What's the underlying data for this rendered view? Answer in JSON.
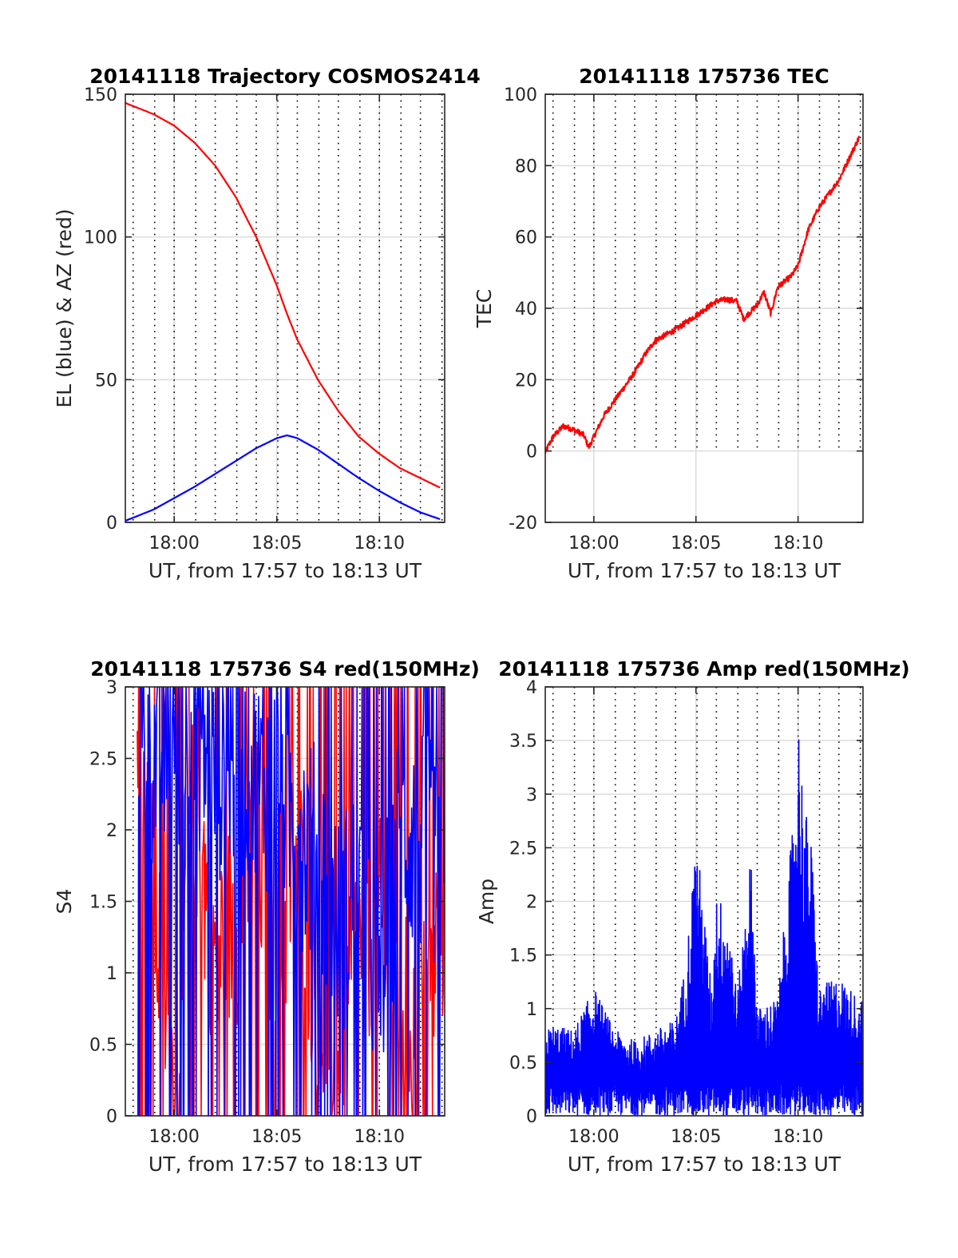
{
  "figure": {
    "charts": [
      {
        "id": "trajectory",
        "type": "line",
        "title": "20141118 Trajectory COSMOS2414",
        "xlabel": "UT, from 17:57 to 18:13 UT",
        "ylabel": "EL (blue) & AZ (red)",
        "xlim": [
          17.62,
          33.18
        ],
        "ylim": [
          0,
          150
        ],
        "xticks": [
          {
            "v": 20,
            "label": "18:00"
          },
          {
            "v": 25,
            "label": "18:05"
          },
          {
            "v": 30,
            "label": "18:10"
          }
        ],
        "yticks": [
          {
            "v": 0,
            "label": "0"
          },
          {
            "v": 50,
            "label": "50"
          },
          {
            "v": 100,
            "label": "100"
          },
          {
            "v": 150,
            "label": "150"
          }
        ]
      },
      {
        "id": "tec",
        "type": "line",
        "title": "20141118 175736 TEC",
        "xlabel": "UT, from 17:57 to 18:13 UT",
        "ylabel": "TEC",
        "xlim": [
          17.62,
          33.18
        ],
        "ylim": [
          -20,
          100
        ],
        "xticks": [
          {
            "v": 20,
            "label": "18:00"
          },
          {
            "v": 25,
            "label": "18:05"
          },
          {
            "v": 30,
            "label": "18:10"
          }
        ],
        "yticks": [
          {
            "v": -20,
            "label": "-20"
          },
          {
            "v": 0,
            "label": "0"
          },
          {
            "v": 20,
            "label": "20"
          },
          {
            "v": 40,
            "label": "40"
          },
          {
            "v": 60,
            "label": "60"
          },
          {
            "v": 80,
            "label": "80"
          },
          {
            "v": 100,
            "label": "100"
          }
        ]
      },
      {
        "id": "s4",
        "type": "line",
        "title": "20141118 175736 S4 red(150MHz)",
        "xlabel": "UT, from 17:57 to 18:13 UT",
        "ylabel": "S4",
        "xlim": [
          17.62,
          33.18
        ],
        "ylim": [
          0,
          3
        ],
        "xticks": [
          {
            "v": 20,
            "label": "18:00"
          },
          {
            "v": 25,
            "label": "18:05"
          },
          {
            "v": 30,
            "label": "18:10"
          }
        ],
        "yticks": [
          {
            "v": 0,
            "label": "0"
          },
          {
            "v": 0.5,
            "label": "0.5"
          },
          {
            "v": 1,
            "label": "1"
          },
          {
            "v": 1.5,
            "label": "1.5"
          },
          {
            "v": 2,
            "label": "2"
          },
          {
            "v": 2.5,
            "label": "2.5"
          },
          {
            "v": 3,
            "label": "3"
          }
        ]
      },
      {
        "id": "amp",
        "type": "line",
        "title": "20141118 175736 Amp red(150MHz)",
        "xlabel": "UT, from 17:57 to 18:13 UT",
        "ylabel": "Amp",
        "xlim": [
          17.62,
          33.18
        ],
        "ylim": [
          0,
          4
        ],
        "xticks": [
          {
            "v": 20,
            "label": "18:00"
          },
          {
            "v": 25,
            "label": "18:05"
          },
          {
            "v": 30,
            "label": "18:10"
          }
        ],
        "yticks": [
          {
            "v": 0,
            "label": "0"
          },
          {
            "v": 0.5,
            "label": "0.5"
          },
          {
            "v": 1,
            "label": "1"
          },
          {
            "v": 1.5,
            "label": "1.5"
          },
          {
            "v": 2,
            "label": "2"
          },
          {
            "v": 2.5,
            "label": "2.5"
          },
          {
            "v": 3,
            "label": "3"
          },
          {
            "v": 3.5,
            "label": "3.5"
          },
          {
            "v": 4,
            "label": "4"
          }
        ]
      }
    ]
  },
  "chart_data": [
    {
      "type": "line",
      "title": "20141118 Trajectory COSMOS2414",
      "xlabel": "UT, from 17:57 to 18:13 UT",
      "ylabel": "EL (blue) & AZ (red)",
      "ylim": [
        0,
        150
      ],
      "grid": true,
      "series": [
        {
          "color": "#ff0000",
          "x": [
            "17:57:36",
            "17:59:00",
            "18:00:00",
            "18:01:00",
            "18:02:00",
            "18:03:00",
            "18:04:00",
            "18:05:00",
            "18:05:30",
            "18:06:00",
            "18:07:00",
            "18:08:00",
            "18:09:00",
            "18:10:00",
            "18:11:00",
            "18:12:00",
            "18:13:00"
          ],
          "values": [
            147,
            143,
            139,
            133,
            125,
            114,
            100,
            83,
            73,
            64,
            50,
            39,
            30,
            24,
            19,
            15.5,
            12
          ]
        },
        {
          "color": "#0000ff",
          "x": [
            "17:57:36",
            "17:59:00",
            "18:00:00",
            "18:01:00",
            "18:02:00",
            "18:03:00",
            "18:04:00",
            "18:05:00",
            "18:05:30",
            "18:06:00",
            "18:07:00",
            "18:08:00",
            "18:09:00",
            "18:10:00",
            "18:11:00",
            "18:12:00",
            "18:13:00"
          ],
          "values": [
            0.5,
            4.5,
            8.5,
            12.5,
            17,
            21.5,
            26,
            29.5,
            30.5,
            29.5,
            25.5,
            20.5,
            15.5,
            11,
            7,
            3.5,
            1
          ]
        }
      ]
    },
    {
      "type": "line",
      "title": "20141118 175736 TEC",
      "xlabel": "UT, from 17:57 to 18:13 UT",
      "ylabel": "TEC",
      "ylim": [
        -20,
        100
      ],
      "grid": true,
      "series": [
        {
          "color": "#ff0000",
          "x": [
            "17:57:36",
            "17:58:00",
            "17:58:30",
            "17:59:00",
            "17:59:30",
            "17:59:45",
            "18:00:30",
            "18:01:00",
            "18:02:00",
            "18:02:30",
            "18:03:00",
            "18:04:00",
            "18:05:00",
            "18:06:00",
            "18:06:30",
            "18:07:00",
            "18:07:20",
            "18:08:00",
            "18:08:20",
            "18:08:40",
            "18:09:00",
            "18:09:40",
            "18:10:00",
            "18:10:30",
            "18:11:00",
            "18:12:00",
            "18:13:00"
          ],
          "values": [
            -0.5,
            4,
            7,
            6,
            4.5,
            1,
            10,
            14,
            22,
            27,
            31,
            34,
            38,
            42,
            42.5,
            42,
            37,
            41,
            44.5,
            38.5,
            46,
            49,
            52,
            62,
            68,
            76,
            88
          ]
        }
      ]
    },
    {
      "type": "line",
      "title": "20141118 175736 S4 red(150MHz)",
      "xlabel": "UT, from 17:57 to 18:13 UT",
      "ylabel": "S4",
      "ylim": [
        0,
        3
      ],
      "grid": true,
      "series": [
        {
          "color": "#ff0000",
          "x": [
            "17:58",
            "17:59",
            "18:00",
            "18:01",
            "18:02",
            "18:03",
            "18:04",
            "18:05",
            "18:06",
            "18:07",
            "18:08",
            "18:09",
            "18:10",
            "18:11",
            "18:12",
            "18:13"
          ],
          "values": [
            2.5,
            1.5,
            0.2,
            2.2,
            1.1,
            1.4,
            1.9,
            1.2,
            1.8,
            0.8,
            0.6,
            1.2,
            1.3,
            0.9,
            0.5,
            1.4
          ]
        },
        {
          "color": "#0000ff",
          "x": [
            "17:58",
            "17:59",
            "18:00",
            "18:01",
            "18:02",
            "18:03",
            "18:04",
            "18:05",
            "18:06",
            "18:07",
            "18:08",
            "18:09",
            "18:10",
            "18:11",
            "18:12",
            "18:13"
          ],
          "values": [
            2.8,
            2.5,
            2.6,
            2.7,
            2.4,
            2.5,
            2.3,
            2.4,
            2.0,
            1.8,
            1.3,
            1.6,
            0.9,
            2.0,
            1.9,
            1.8
          ]
        }
      ]
    },
    {
      "type": "line",
      "title": "20141118 175736 Amp red(150MHz)",
      "xlabel": "UT, from 17:57 to 18:13 UT",
      "ylabel": "Amp",
      "ylim": [
        0,
        4
      ],
      "grid": true,
      "series": [
        {
          "color": "#0000ff",
          "x": [
            "17:57:36",
            "17:58:00",
            "17:59:00",
            "18:00:00",
            "18:01:00",
            "18:02:00",
            "18:03:00",
            "18:04:00",
            "18:04:30",
            "18:05:00",
            "18:05:45",
            "18:06:00",
            "18:06:40",
            "18:07:00",
            "18:07:40",
            "18:08:00",
            "18:09:00",
            "18:09:50",
            "18:10:00",
            "18:10:15",
            "18:10:40",
            "18:11:00",
            "18:12:00",
            "18:13:00"
          ],
          "values": [
            0.8,
            0.85,
            0.8,
            1.2,
            0.8,
            0.7,
            0.8,
            0.9,
            1.45,
            2.65,
            1.2,
            2.12,
            1.8,
            1.1,
            2.48,
            1.0,
            1.1,
            2.95,
            3.8,
            3.0,
            2.5,
            1.2,
            1.3,
            1.1
          ]
        }
      ]
    }
  ]
}
